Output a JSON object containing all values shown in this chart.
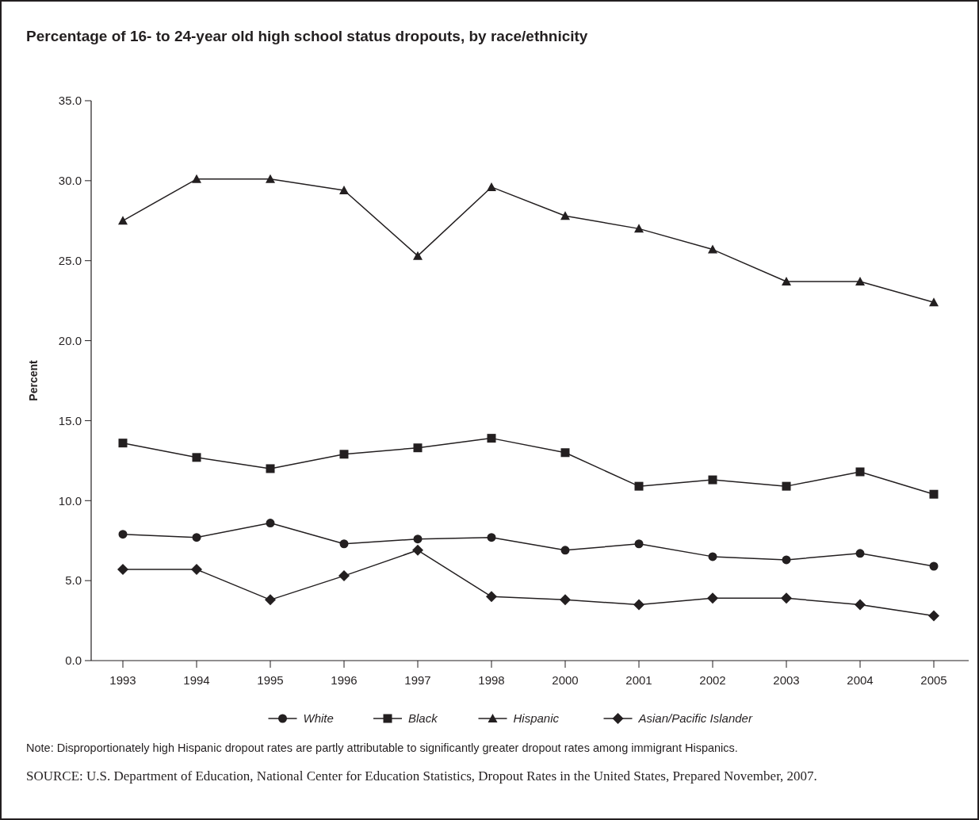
{
  "chart_data": {
    "type": "line",
    "title": "Percentage of 16- to 24-year old high school status dropouts, by race/ethnicity",
    "ylabel": "Percent",
    "categories": [
      "1993",
      "1994",
      "1995",
      "1996",
      "1997",
      "1998",
      "2000",
      "2001",
      "2002",
      "2003",
      "2004",
      "2005"
    ],
    "series": [
      {
        "name": "White",
        "color": "#231f20",
        "marker": "circle",
        "values": [
          7.9,
          7.7,
          8.6,
          7.3,
          7.6,
          7.7,
          6.9,
          7.3,
          6.5,
          6.3,
          6.7,
          5.9
        ]
      },
      {
        "name": "Black",
        "color": "#231f20",
        "marker": "square",
        "values": [
          13.6,
          12.7,
          12.0,
          12.9,
          13.3,
          13.9,
          13.0,
          10.9,
          11.3,
          10.9,
          11.8,
          10.4
        ]
      },
      {
        "name": "Hispanic",
        "color": "#231f20",
        "marker": "triangle",
        "values": [
          27.5,
          30.1,
          30.1,
          29.4,
          25.3,
          29.6,
          27.8,
          27.0,
          25.7,
          23.7,
          23.7,
          22.4
        ]
      },
      {
        "name": "Asian/Pacific Islander",
        "color": "#231f20",
        "marker": "diamond",
        "values": [
          5.7,
          5.7,
          3.8,
          5.3,
          6.9,
          4.0,
          3.8,
          3.5,
          3.9,
          3.9,
          3.5,
          2.8
        ]
      }
    ],
    "ylim": [
      0,
      35
    ],
    "yticks": [
      {
        "value": 0,
        "label": "0.0"
      },
      {
        "value": 5,
        "label": "5.0"
      },
      {
        "value": 10,
        "label": "10.0"
      },
      {
        "value": 15,
        "label": "15.0"
      },
      {
        "value": 20,
        "label": "20.0"
      },
      {
        "value": 25,
        "label": "25.0"
      },
      {
        "value": 30,
        "label": "30.0"
      },
      {
        "value": 35,
        "label": "35.0"
      }
    ],
    "grid": false,
    "legend": "bottom",
    "line_style": "solid",
    "annotations": [
      "Note: Disproportionately high Hispanic dropout rates are partly attributable to significantly greater dropout rates among immigrant Hispanics.",
      "SOURCE: U.S. Department of Education, National Center for Education Statistics, Dropout Rates in the United States, Prepared November, 2007."
    ]
  }
}
